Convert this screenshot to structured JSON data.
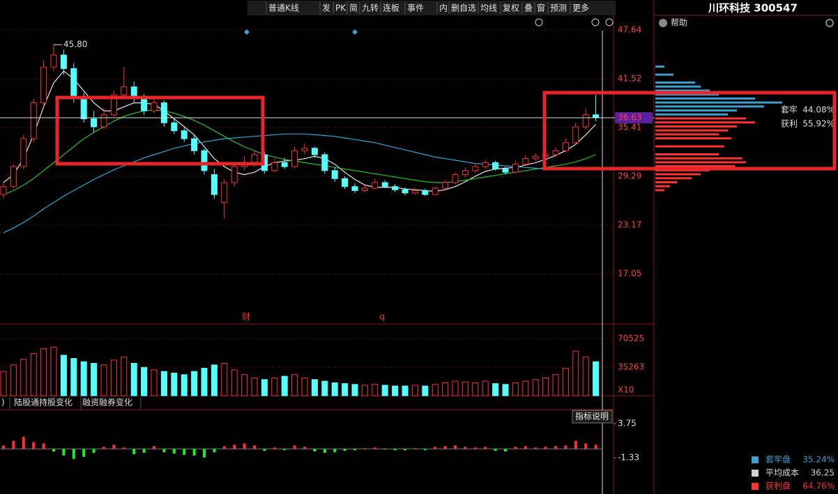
{
  "toolbar": {
    "items": [
      "普通K线",
      "发",
      "PK",
      "简",
      "九转",
      "连板",
      "事件",
      "内",
      "删自选",
      "均线",
      "复权",
      "叠",
      "窗",
      "预测",
      "更多"
    ]
  },
  "stock": {
    "title": "川环科技 300547",
    "help": "帮助"
  },
  "price_chart": {
    "type": "candlestick",
    "ylim": [
      10.76,
      48.78
    ],
    "yticks": [
      17.05,
      23.17,
      29.29,
      35.41,
      41.52,
      47.64
    ],
    "open": [
      27.0,
      28.0,
      30.5,
      34.0,
      38.5,
      43.0,
      44.5,
      42.8,
      39.0,
      36.5,
      35.5,
      37.0,
      39.5,
      40.5,
      39.0,
      37.5,
      38.5,
      36.0,
      35.0,
      34.0,
      32.5,
      29.5,
      26.0,
      28.5,
      30.5,
      31.0,
      32.0,
      30.0,
      31.0,
      30.5,
      32.5,
      32.8,
      32.0,
      30.0,
      29.0,
      28.0,
      27.5,
      27.8,
      28.5,
      28.0,
      27.6,
      27.2,
      27.5,
      27.0,
      27.8,
      28.5,
      29.5,
      30.0,
      30.5,
      31.0,
      30.2,
      29.8,
      30.8,
      31.5,
      31.8,
      32.0,
      32.5,
      33.5,
      35.5,
      37.0
    ],
    "high": [
      28.6,
      30.8,
      34.5,
      39.0,
      43.8,
      45.8,
      45.2,
      43.5,
      39.8,
      37.5,
      37.8,
      40.0,
      43.0,
      41.2,
      39.6,
      39.0,
      38.8,
      36.5,
      35.4,
      34.5,
      32.8,
      30.2,
      28.9,
      31.0,
      31.8,
      32.6,
      32.4,
      31.5,
      31.6,
      33.0,
      33.4,
      33.0,
      32.3,
      30.4,
      29.3,
      28.4,
      28.2,
      29.0,
      28.8,
      28.3,
      27.9,
      27.8,
      27.7,
      28.0,
      28.8,
      29.8,
      30.4,
      30.9,
      31.4,
      31.2,
      30.5,
      31.2,
      31.9,
      32.2,
      32.4,
      32.9,
      34.0,
      36.0,
      37.8,
      39.5
    ],
    "low": [
      26.5,
      27.8,
      30.2,
      33.5,
      38.0,
      42.5,
      42.0,
      38.5,
      36.0,
      34.8,
      35.2,
      36.8,
      39.0,
      38.5,
      37.0,
      37.2,
      35.5,
      34.6,
      33.6,
      32.0,
      29.5,
      26.5,
      24.0,
      28.0,
      30.0,
      30.5,
      29.6,
      29.8,
      30.2,
      30.3,
      32.0,
      31.6,
      29.6,
      28.6,
      27.7,
      27.2,
      27.3,
      27.6,
      27.8,
      27.3,
      26.9,
      27.0,
      26.8,
      26.9,
      27.6,
      28.3,
      29.2,
      29.7,
      30.2,
      30.0,
      29.5,
      29.6,
      30.6,
      31.2,
      31.5,
      31.7,
      32.3,
      33.2,
      35.2,
      36.2
    ],
    "close": [
      28.0,
      30.5,
      34.0,
      38.5,
      43.0,
      44.5,
      42.8,
      39.0,
      36.5,
      35.5,
      37.0,
      39.5,
      40.5,
      39.0,
      37.5,
      38.5,
      36.0,
      35.0,
      34.0,
      32.5,
      30.0,
      27.0,
      28.5,
      30.5,
      31.0,
      32.0,
      30.0,
      31.0,
      30.5,
      32.5,
      32.8,
      32.0,
      30.0,
      29.0,
      28.0,
      27.5,
      27.8,
      28.5,
      28.0,
      27.6,
      27.2,
      27.5,
      27.0,
      27.8,
      28.5,
      29.5,
      30.0,
      30.5,
      31.0,
      30.2,
      29.8,
      30.8,
      31.5,
      31.8,
      32.0,
      32.5,
      33.5,
      35.5,
      37.0,
      36.63
    ],
    "ma": [
      {
        "color": "#e8e8e8",
        "values": [
          28.5,
          29.5,
          31.5,
          34.5,
          38,
          41,
          42.5,
          41.5,
          40,
          38.5,
          37.5,
          37.5,
          38,
          38.5,
          38.5,
          38.3,
          37.5,
          36.5,
          35.5,
          34.5,
          33.0,
          31.5,
          30.5,
          29.8,
          29.5,
          29.8,
          30.5,
          31.0,
          31.2,
          31.3,
          31.5,
          31.8,
          31.5,
          30.8,
          29.8,
          28.9,
          28.2,
          27.9,
          27.9,
          27.9,
          27.7,
          27.6,
          27.5,
          27.4,
          27.6,
          28.0,
          28.6,
          29.3,
          29.9,
          30.2,
          30.3,
          30.4,
          30.7,
          31.0,
          31.4,
          31.9,
          32.5,
          33.3,
          34.5,
          35.8
        ]
      },
      {
        "color": "#22c322",
        "values": [
          27.0,
          27.5,
          28.2,
          29.0,
          30.0,
          31.0,
          32.0,
          33.0,
          34.0,
          34.8,
          35.5,
          36.2,
          36.8,
          37.2,
          37.5,
          37.6,
          37.5,
          37.2,
          36.8,
          36.3,
          35.7,
          35.0,
          34.3,
          33.6,
          33.0,
          32.5,
          32.0,
          31.7,
          31.4,
          31.2,
          31.0,
          30.8,
          30.6,
          30.4,
          30.2,
          30.0,
          29.8,
          29.6,
          29.4,
          29.2,
          29.0,
          28.8,
          28.6,
          28.5,
          28.5,
          28.6,
          28.8,
          29.0,
          29.2,
          29.4,
          29.6,
          29.8,
          30.0,
          30.2,
          30.4,
          30.6,
          30.8,
          31.1,
          31.5,
          32.0
        ]
      },
      {
        "color": "#2aa8d8",
        "values": [
          22.2,
          22.8,
          23.5,
          24.3,
          25.2,
          26.0,
          26.8,
          27.5,
          28.2,
          28.9,
          29.5,
          30.1,
          30.6,
          31.1,
          31.6,
          32.0,
          32.4,
          32.8,
          33.1,
          33.4,
          33.6,
          33.8,
          34.0,
          34.1,
          34.2,
          34.3,
          34.4,
          34.5,
          34.6,
          34.6,
          34.6,
          34.5,
          34.4,
          34.3,
          34.1,
          33.9,
          33.7,
          33.5,
          33.2,
          32.9,
          32.6,
          32.3,
          32.0,
          31.7,
          31.5,
          31.3,
          31.1,
          30.9,
          30.8,
          30.7,
          30.6,
          30.5,
          30.4,
          30.3,
          30.2,
          30.1,
          30.1,
          30.1,
          30.2,
          30.3
        ]
      }
    ],
    "up_color": "#ff3232",
    "down_color": "#54ffff",
    "current_price": 36.63,
    "max_marker": {
      "value": 45.8,
      "label": "45.80"
    },
    "events": [
      "财",
      "q"
    ]
  },
  "volume_chart": {
    "type": "bar",
    "ylim": [
      0,
      86000
    ],
    "yticks": [
      35263,
      70525
    ],
    "unit_label": "X10",
    "values": [
      30000,
      38000,
      45000,
      52000,
      58000,
      60000,
      50000,
      46000,
      42000,
      40000,
      38000,
      44000,
      48000,
      40000,
      35000,
      32000,
      30000,
      28000,
      26000,
      30000,
      34000,
      38000,
      40000,
      32000,
      26000,
      22000,
      20000,
      22000,
      24000,
      26000,
      22000,
      20000,
      18000,
      16000,
      15000,
      14000,
      13000,
      14000,
      13000,
      12000,
      12000,
      13000,
      12000,
      14000,
      16000,
      18000,
      17000,
      16000,
      18000,
      15000,
      14000,
      16000,
      18000,
      20000,
      22000,
      26000,
      34000,
      55000,
      48000,
      42000
    ]
  },
  "tabs": [
    ")",
    "陆股通持股变化",
    "融资融券变化"
  ],
  "indicator_chart": {
    "type": "bar",
    "button": "指标说明",
    "ylim": [
      -6.72,
      5.62
    ],
    "yticks": [
      -1.33,
      3.75
    ],
    "values": [
      0.5,
      1.2,
      1.8,
      1.0,
      0.8,
      -0.4,
      -1.0,
      -1.5,
      -1.2,
      -0.6,
      0.3,
      0.6,
      0.2,
      -0.8,
      -0.6,
      0.4,
      -0.5,
      -0.7,
      -0.9,
      -1.0,
      -1.3,
      -0.5,
      0.4,
      0.6,
      0.8,
      0.5,
      -0.3,
      0.2,
      -0.2,
      0.5,
      0.3,
      -0.4,
      -0.6,
      -0.5,
      -0.3,
      -0.2,
      0.1,
      0.2,
      -0.1,
      -0.2,
      -0.2,
      0.1,
      -0.2,
      0.3,
      0.4,
      0.5,
      0.3,
      0.2,
      0.3,
      -0.3,
      -0.4,
      0.3,
      0.4,
      0.2,
      0.3,
      0.4,
      0.5,
      1.2,
      0.8,
      0.6
    ],
    "up_color": "#ff3232",
    "down_color": "#22e822"
  },
  "chip_panel": {
    "xlim": [
      0,
      100
    ],
    "prices": [
      43,
      42,
      41,
      40.5,
      40,
      39.5,
      39,
      38.5,
      38,
      37.5,
      37,
      36.5,
      36,
      35.5,
      35,
      34.5,
      34,
      33,
      32,
      31.5,
      31,
      30.5,
      30,
      29.5,
      29,
      28.5,
      28,
      27.5
    ],
    "amounts": [
      5,
      10,
      22,
      25,
      30,
      35,
      55,
      70,
      60,
      45,
      40,
      50,
      55,
      45,
      40,
      35,
      42,
      38,
      35,
      48,
      50,
      44,
      30,
      25,
      20,
      12,
      8,
      5
    ],
    "stats": [
      {
        "label": "套牢",
        "value": "44.08%"
      },
      {
        "label": "获利",
        "value": "55.92%"
      }
    ],
    "legend": [
      {
        "label": "套牢盘",
        "value": "35.24%",
        "color": "#3aa0d0"
      },
      {
        "label": "平均成本",
        "value": "36.25",
        "color": "#d0d0d0"
      },
      {
        "label": "获利盘",
        "value": "64.76%",
        "color": "#ff3232"
      }
    ]
  }
}
